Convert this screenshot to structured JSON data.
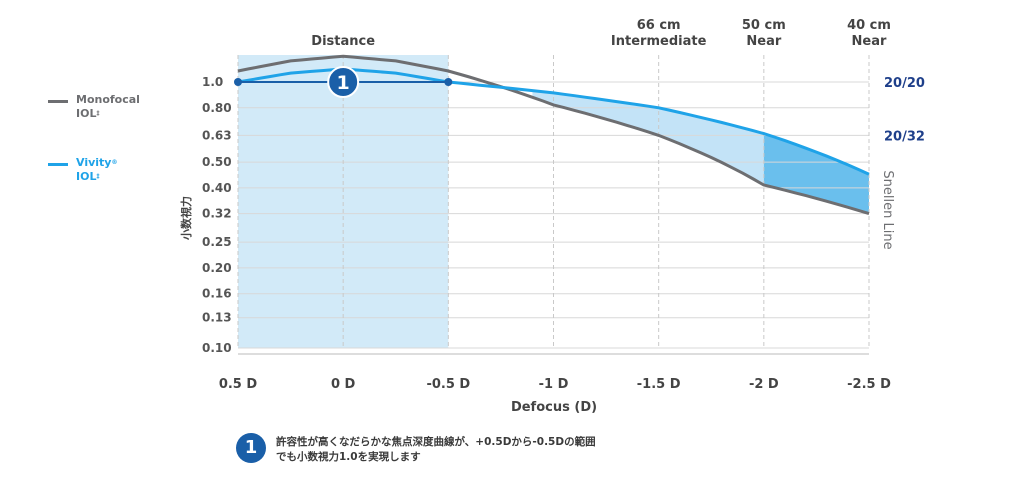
{
  "chart_data": {
    "type": "line",
    "ylabel": "小数視力",
    "xlabel": "Defocus (D)",
    "x": [
      0.5,
      0.25,
      0,
      -0.25,
      -0.5,
      -1,
      -1.5,
      -2,
      -2.5
    ],
    "x_tick_values": [
      0.5,
      0,
      -0.5,
      -1,
      -1.5,
      -2,
      -2.5
    ],
    "x_tick_labels": [
      "0.5 D",
      "0 D",
      "-0.5 D",
      "-1 D",
      "-1.5 D",
      "-2 D",
      "-2.5 D"
    ],
    "xlim": [
      0.5,
      -2.5
    ],
    "y_tick_labels": [
      "1.0",
      "0.80",
      "0.63",
      "0.50",
      "0.40",
      "0.32",
      "0.25",
      "0.20",
      "0.16",
      "0.13",
      "0.10"
    ],
    "ylim_logmar": [
      0.0,
      1.0
    ],
    "grid": true,
    "series": [
      {
        "name": "Monofocal IOL",
        "color": "#6d6e71",
        "values": [
          1.1,
          1.2,
          1.25,
          1.2,
          1.1,
          0.82,
          0.63,
          0.41,
          0.32
        ]
      },
      {
        "name": "Vivity IOL",
        "color": "#1fa3e8",
        "values": [
          1.0,
          1.08,
          1.12,
          1.08,
          1.0,
          0.91,
          0.8,
          0.64,
          0.45
        ]
      }
    ],
    "highlight_region": {
      "label": "Distance",
      "x_range": [
        0.5,
        -0.5
      ]
    },
    "top_labels": [
      {
        "x": 0,
        "lines": [
          "Distance"
        ]
      },
      {
        "x": -1.5,
        "lines": [
          "66 cm",
          "Intermediate"
        ]
      },
      {
        "x": -2,
        "lines": [
          "50 cm",
          "Near"
        ]
      },
      {
        "x": -2.5,
        "lines": [
          "40 cm",
          "Near"
        ]
      }
    ],
    "snellen_labels": [
      {
        "value": 1.0,
        "text": "20/20"
      },
      {
        "value": 0.63,
        "text": "20/32"
      }
    ],
    "right_axis_label": "Snellen Line",
    "marker": {
      "x": 0,
      "y": 1.0,
      "text": "1",
      "from": 0.5,
      "to": -0.5
    },
    "colors": {
      "distance_band": "#d2eaf8",
      "fill_light": "#bde0f6",
      "fill_dark": "#5ab8eb",
      "marker": "#1a5fa8",
      "snellen": "#1e3f8a"
    }
  },
  "legend": {
    "monofocal": {
      "name": "Monofocal",
      "line2": "IOL",
      "sup": "‡"
    },
    "vivity": {
      "name": "Vivity",
      "name_sup": "®",
      "line2": "IOL",
      "sup": "‡"
    }
  },
  "footnote": {
    "badge": "1",
    "text": "許容性が高くなだらかな焦点深度曲線が、+0.5Dから-0.5Dの範囲でも小数視力1.0を実現します"
  }
}
